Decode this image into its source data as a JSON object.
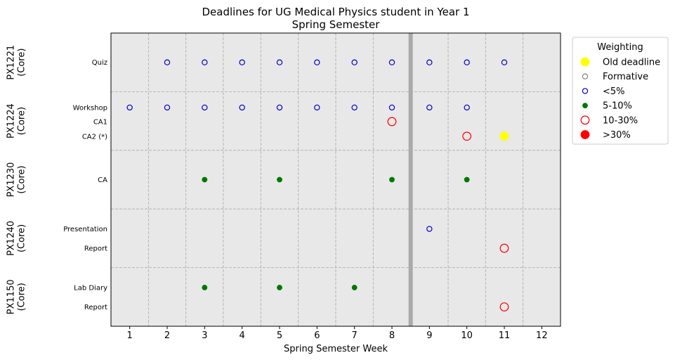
{
  "chart_data": {
    "type": "scatter",
    "title": "Deadlines for UG Medical Physics student in Year 1",
    "subtitle": "Spring Semester",
    "xlabel": "Spring Semester Week",
    "xlim": [
      0.5,
      12.5
    ],
    "xticks": [
      1,
      2,
      3,
      4,
      5,
      6,
      7,
      8,
      9,
      10,
      11,
      12
    ],
    "grid": true,
    "reference_line_x": 8.5,
    "legend": {
      "title": "Weighting",
      "placement": "outside-top-right",
      "entries": [
        {
          "label": "Old deadline",
          "style": "old"
        },
        {
          "label": "Formative",
          "style": "formative"
        },
        {
          "label": "<5%",
          "style": "lt5"
        },
        {
          "label": "5-10%",
          "style": "w5_10"
        },
        {
          "label": "10-30%",
          "style": "w10_30"
        },
        {
          "label": ">30%",
          "style": "gt30"
        }
      ]
    },
    "styles": {
      "old": {
        "fill": "#ffff00",
        "stroke": "#ffff00",
        "size": "large"
      },
      "formative": {
        "fill": "none",
        "stroke": "#808080",
        "size": "small"
      },
      "lt5": {
        "fill": "none",
        "stroke": "#0000cc",
        "size": "small"
      },
      "w5_10": {
        "fill": "#007700",
        "stroke": "#007700",
        "size": "tiny"
      },
      "w10_30": {
        "fill": "none",
        "stroke": "#ff0000",
        "size": "large"
      },
      "gt30": {
        "fill": "#ff0000",
        "stroke": "#ff0000",
        "size": "large"
      }
    },
    "modules": [
      {
        "name": "PX1221\n(Core)",
        "rows": [
          {
            "label": "Quiz",
            "points": [
              {
                "week": 2,
                "style": "lt5"
              },
              {
                "week": 3,
                "style": "lt5"
              },
              {
                "week": 4,
                "style": "lt5"
              },
              {
                "week": 5,
                "style": "lt5"
              },
              {
                "week": 6,
                "style": "lt5"
              },
              {
                "week": 7,
                "style": "lt5"
              },
              {
                "week": 8,
                "style": "lt5"
              },
              {
                "week": 9,
                "style": "lt5"
              },
              {
                "week": 10,
                "style": "lt5"
              },
              {
                "week": 11,
                "style": "lt5"
              }
            ]
          }
        ]
      },
      {
        "name": "PX1224\n(Core)",
        "rows": [
          {
            "label": "Workshop",
            "points": [
              {
                "week": 1,
                "style": "lt5"
              },
              {
                "week": 2,
                "style": "lt5"
              },
              {
                "week": 3,
                "style": "lt5"
              },
              {
                "week": 4,
                "style": "lt5"
              },
              {
                "week": 5,
                "style": "lt5"
              },
              {
                "week": 6,
                "style": "lt5"
              },
              {
                "week": 7,
                "style": "lt5"
              },
              {
                "week": 8,
                "style": "lt5"
              },
              {
                "week": 9,
                "style": "lt5"
              },
              {
                "week": 10,
                "style": "lt5"
              }
            ]
          },
          {
            "label": "CA1",
            "points": [
              {
                "week": 8,
                "style": "w10_30"
              }
            ]
          },
          {
            "label": "CA2 (*)",
            "points": [
              {
                "week": 10,
                "style": "w10_30"
              },
              {
                "week": 11,
                "style": "old"
              }
            ]
          }
        ]
      },
      {
        "name": "PX1230\n(Core)",
        "rows": [
          {
            "label": "CA",
            "points": [
              {
                "week": 3,
                "style": "w5_10"
              },
              {
                "week": 5,
                "style": "w5_10"
              },
              {
                "week": 8,
                "style": "w5_10"
              },
              {
                "week": 10,
                "style": "w5_10"
              }
            ]
          }
        ]
      },
      {
        "name": "PX1240\n(Core)",
        "rows": [
          {
            "label": "Presentation",
            "points": [
              {
                "week": 9,
                "style": "lt5"
              }
            ]
          },
          {
            "label": "Report",
            "points": [
              {
                "week": 11,
                "style": "w10_30"
              }
            ]
          }
        ]
      },
      {
        "name": "PX1150\n(Core)",
        "rows": [
          {
            "label": "Lab Diary",
            "points": [
              {
                "week": 3,
                "style": "w5_10"
              },
              {
                "week": 5,
                "style": "w5_10"
              },
              {
                "week": 7,
                "style": "w5_10"
              }
            ]
          },
          {
            "label": "Report",
            "points": [
              {
                "week": 11,
                "style": "w10_30"
              }
            ]
          }
        ]
      }
    ]
  }
}
